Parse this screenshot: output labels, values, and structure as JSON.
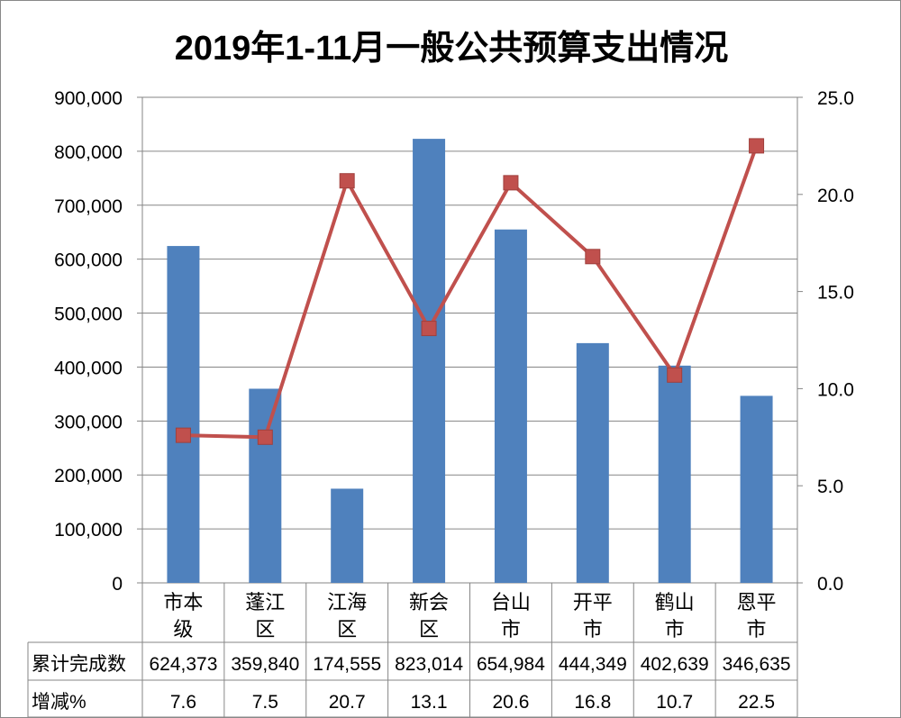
{
  "chart_data": {
    "type": "bar+line",
    "title": "2019年1-11月一般公共预算支出情况",
    "categories": [
      [
        "市本",
        "级"
      ],
      [
        "蓬江",
        "区"
      ],
      [
        "江海",
        "区"
      ],
      [
        "新会",
        "区"
      ],
      [
        "台山",
        "市"
      ],
      [
        "开平",
        "市"
      ],
      [
        "鹤山",
        "市"
      ],
      [
        "恩平",
        "市"
      ]
    ],
    "series": [
      {
        "name": "累计完成数",
        "type": "bar",
        "axis": "left",
        "color": "#4F81BD",
        "values": [
          624373,
          359840,
          174555,
          823014,
          654984,
          444349,
          402639,
          346635
        ],
        "labels": [
          "624,373",
          "359,840",
          "174,555",
          "823,014",
          "654,984",
          "444,349",
          "402,639",
          "346,635"
        ]
      },
      {
        "name": "增减%",
        "type": "line",
        "axis": "right",
        "color": "#C0504D",
        "values": [
          7.6,
          7.5,
          20.7,
          13.1,
          20.6,
          16.8,
          10.7,
          22.5
        ],
        "labels": [
          "7.6",
          "7.5",
          "20.7",
          "13.1",
          "20.6",
          "16.8",
          "10.7",
          "22.5"
        ]
      }
    ],
    "ylim_left": [
      0,
      900000
    ],
    "yticks_left": [
      "0",
      "100,000",
      "200,000",
      "300,000",
      "400,000",
      "500,000",
      "600,000",
      "700,000",
      "800,000",
      "900,000"
    ],
    "ylim_right": [
      0,
      25
    ],
    "yticks_right": [
      "0.0",
      "5.0",
      "10.0",
      "15.0",
      "20.0",
      "25.0"
    ],
    "grid": true,
    "legend": "data-table"
  }
}
